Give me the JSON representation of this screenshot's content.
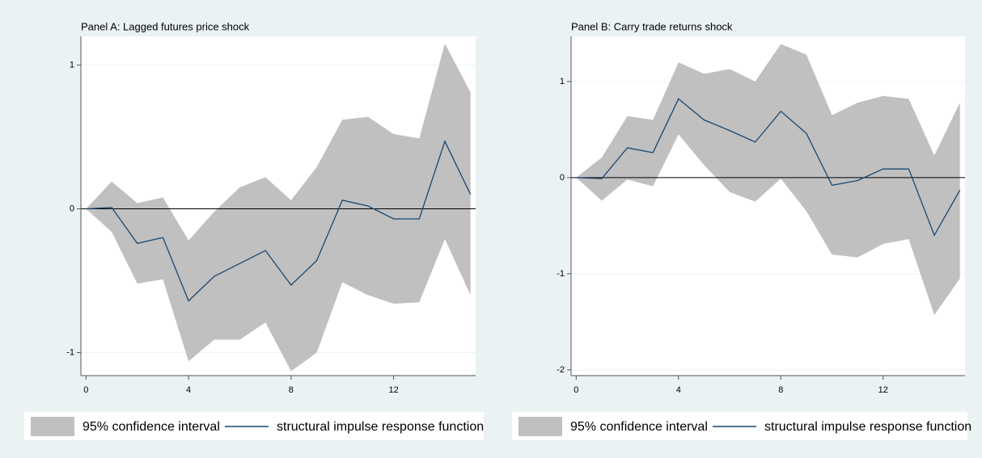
{
  "chart_data": [
    {
      "type": "line",
      "title": "Panel A: Lagged futures price shock",
      "x": [
        0,
        1,
        2,
        3,
        4,
        5,
        6,
        7,
        8,
        9,
        10,
        11,
        12,
        13,
        14,
        15
      ],
      "xlim": [
        -0.2,
        15.2
      ],
      "xticks": [
        0,
        4,
        8,
        12
      ],
      "ylim": [
        -1.16,
        1.2
      ],
      "yticks": [
        -1,
        0,
        1
      ],
      "grid": true,
      "reference_line": 0,
      "series": [
        {
          "name": "95% confidence interval",
          "color": "#c0c0c0",
          "upper": [
            0,
            0.19,
            0.04,
            0.08,
            -0.22,
            -0.02,
            0.15,
            0.22,
            0.06,
            0.29,
            0.62,
            0.64,
            0.52,
            0.49,
            1.15,
            0.81
          ],
          "lower": [
            0,
            -0.16,
            -0.52,
            -0.49,
            -1.06,
            -0.91,
            -0.91,
            -0.79,
            -1.13,
            -1.0,
            -0.51,
            -0.6,
            -0.66,
            -0.65,
            -0.21,
            -0.6
          ]
        },
        {
          "name": "structural impulse response function",
          "color": "#1a476f",
          "values": [
            0,
            0.01,
            -0.24,
            -0.2,
            -0.64,
            -0.47,
            -0.38,
            -0.29,
            -0.53,
            -0.36,
            0.06,
            0.02,
            -0.07,
            -0.07,
            0.47,
            0.1
          ]
        }
      ]
    },
    {
      "type": "line",
      "title": "Panel B: Carry trade returns shock",
      "x": [
        0,
        1,
        2,
        3,
        4,
        5,
        6,
        7,
        8,
        9,
        10,
        11,
        12,
        13,
        14,
        15
      ],
      "xlim": [
        -0.2,
        15.2
      ],
      "xticks": [
        0,
        4,
        8,
        12
      ],
      "ylim": [
        -2.06,
        1.47
      ],
      "yticks": [
        -2,
        -1,
        0,
        1
      ],
      "grid": true,
      "reference_line": 0,
      "series": [
        {
          "name": "95% confidence interval",
          "color": "#c0c0c0",
          "upper": [
            0,
            0.21,
            0.64,
            0.6,
            1.2,
            1.08,
            1.13,
            1.0,
            1.39,
            1.28,
            0.65,
            0.78,
            0.85,
            0.82,
            0.23,
            0.78
          ],
          "lower": [
            0,
            -0.24,
            -0.02,
            -0.09,
            0.45,
            0.13,
            -0.15,
            -0.25,
            -0.01,
            -0.35,
            -0.8,
            -0.83,
            -0.69,
            -0.64,
            -1.43,
            -1.05
          ]
        },
        {
          "name": "structural impulse response function",
          "color": "#1a476f",
          "values": [
            0,
            -0.01,
            0.31,
            0.26,
            0.82,
            0.6,
            0.49,
            0.37,
            0.69,
            0.46,
            -0.08,
            -0.03,
            0.09,
            0.09,
            -0.6,
            -0.13
          ]
        }
      ]
    }
  ]
}
